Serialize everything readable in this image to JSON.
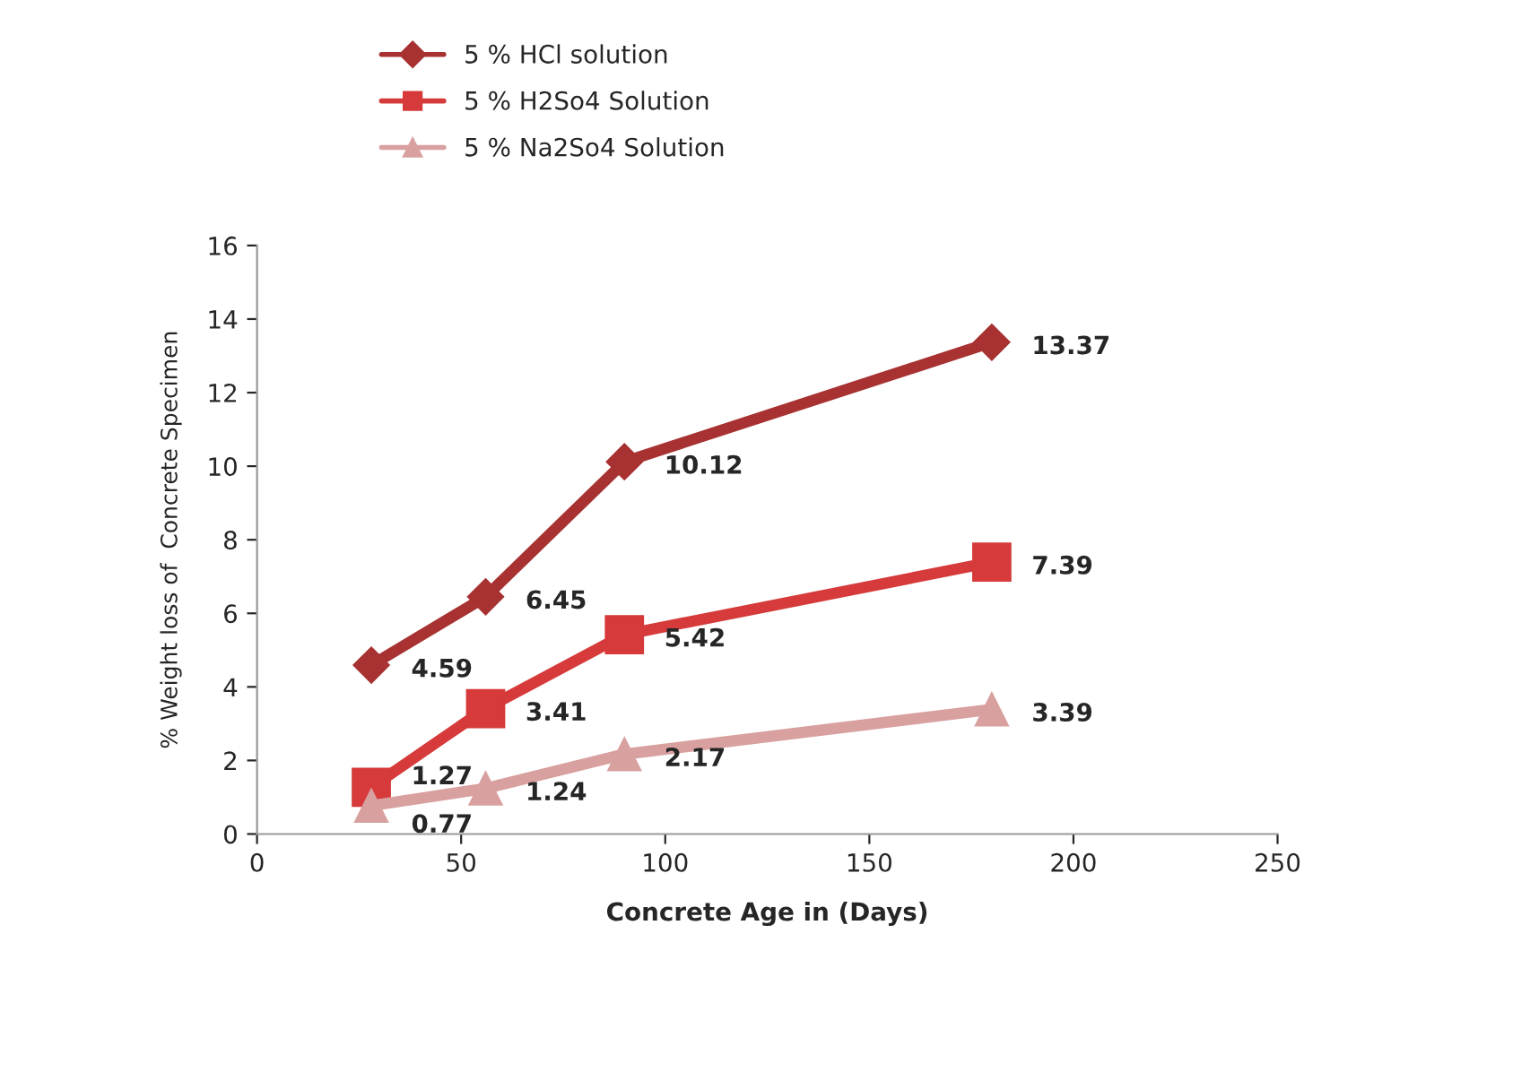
{
  "chart_data": {
    "type": "line",
    "xlabel": "Concrete Age in (Days)",
    "ylabel": "% Weight loss of  Concrete Specimen",
    "x": [
      28,
      56,
      90,
      180
    ],
    "series": [
      {
        "name": "5 % HCl solution",
        "color": "#a83232",
        "values": [
          4.59,
          6.45,
          10.12,
          13.37
        ],
        "marker": "diamond"
      },
      {
        "name": "5 % H2So4 Solution",
        "color": "#d63a3a",
        "values": [
          1.27,
          3.41,
          5.42,
          7.39
        ],
        "marker": "square"
      },
      {
        "name": "5 % Na2So4 Solution",
        "color": "#d9a0a0",
        "values": [
          0.77,
          1.24,
          2.17,
          3.39
        ],
        "marker": "triangle"
      }
    ],
    "xlim": [
      0,
      250
    ],
    "xticks": [
      0,
      50,
      100,
      150,
      200,
      250
    ],
    "ylim": [
      0,
      16
    ],
    "yticks": [
      0,
      2,
      4,
      6,
      8,
      10,
      12,
      14,
      16
    ],
    "data_labels": true,
    "grid": false,
    "legend": "top",
    "line_style": "solid"
  }
}
